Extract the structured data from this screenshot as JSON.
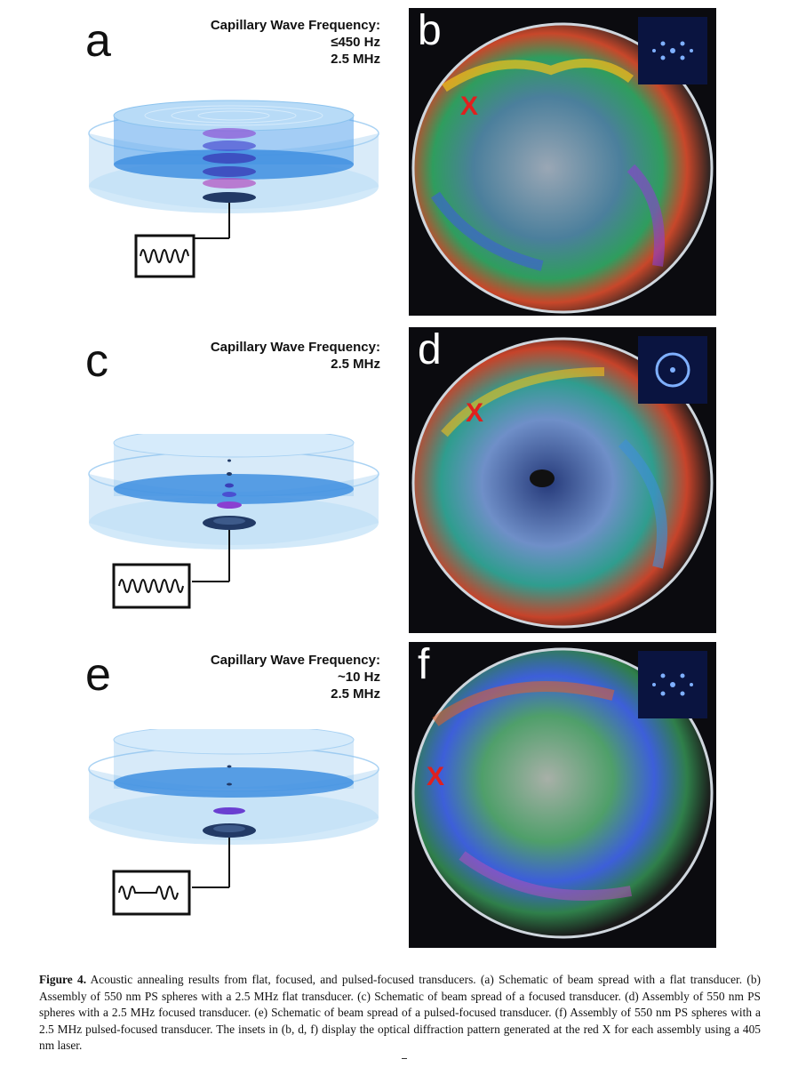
{
  "panels": [
    {
      "letter": "a",
      "freq_label": "Capillary Wave Frequency:",
      "freq_values": [
        "≤450 Hz",
        "2.5 MHz"
      ]
    },
    {
      "letter": "b"
    },
    {
      "letter": "c",
      "freq_label": "Capillary Wave Frequency:",
      "freq_values": [
        "2.5 MHz"
      ]
    },
    {
      "letter": "d"
    },
    {
      "letter": "e",
      "freq_label": "Capillary Wave Frequency:",
      "freq_values": [
        "~10 Hz",
        "2.5 MHz"
      ]
    },
    {
      "letter": "f"
    }
  ],
  "photo_marker": "X",
  "caption": {
    "label": "Figure 4.",
    "text": "Acoustic annealing results from flat, focused, and pulsed-focused transducers. (a) Schematic of beam spread with a flat transducer. (b) Assembly of 550 nm PS spheres with a 2.5 MHz flat transducer. (c) Schematic of beam spread of a focused transducer. (d) Assembly of 550 nm PS spheres with a 2.5 MHz focused transducer. (e) Schematic of beam spread of a pulsed-focused transducer. (f) Assembly of 550 nm PS spheres with a 2.5 MHz pulsed-focused transducer. The insets in (b, d, f) display the optical diffraction pattern generated at the red X for each assembly using a 405 nm laser."
  },
  "colors": {
    "water": "#3f8fe0",
    "dish": "#a9d2f3",
    "beam": "#8a3fd1",
    "transducer": "#223a66",
    "marker": "#e0201e",
    "inset_spot": "#7fb0ff"
  }
}
